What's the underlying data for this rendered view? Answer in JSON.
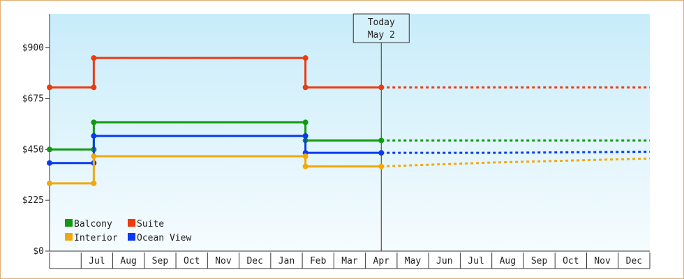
{
  "chart_data": {
    "type": "line",
    "title": "",
    "xlabel": "",
    "ylabel": "",
    "ylim": [
      0,
      1050
    ],
    "yticks": [
      {
        "value": 0,
        "label": "$0"
      },
      {
        "value": 225,
        "label": "$225"
      },
      {
        "value": 450,
        "label": "$450"
      },
      {
        "value": 675,
        "label": "$675"
      },
      {
        "value": 900,
        "label": "$900"
      }
    ],
    "x_months": [
      "",
      "Jul",
      "Aug",
      "Sep",
      "Oct",
      "Nov",
      "Dec",
      "Jan",
      "Feb",
      "Mar",
      "Apr",
      "May",
      "Jun",
      "Jul",
      "Aug",
      "Sep",
      "Oct",
      "Nov",
      "Dec"
    ],
    "x_range": [
      0,
      19
    ],
    "today": {
      "x": 10.5,
      "line1": "Today",
      "line2": "May 2"
    },
    "legend_position": "bottom-left",
    "series": [
      {
        "name": "Suite",
        "color": "#ee3a0e",
        "points": [
          [
            0,
            725
          ],
          [
            1.4,
            725
          ],
          [
            1.4,
            855
          ],
          [
            8.1,
            855
          ],
          [
            8.1,
            725
          ],
          [
            10.5,
            725
          ]
        ],
        "forecast": [
          [
            10.5,
            725
          ],
          [
            19,
            725
          ]
        ]
      },
      {
        "name": "Balcony",
        "color": "#119911",
        "points": [
          [
            0,
            450
          ],
          [
            1.4,
            450
          ],
          [
            1.4,
            570
          ],
          [
            8.1,
            570
          ],
          [
            8.1,
            490
          ],
          [
            10.5,
            490
          ]
        ],
        "forecast": [
          [
            10.5,
            490
          ],
          [
            19,
            490
          ]
        ]
      },
      {
        "name": "Ocean View",
        "color": "#0a3aee",
        "points": [
          [
            0,
            390
          ],
          [
            1.4,
            390
          ],
          [
            1.4,
            510
          ],
          [
            8.1,
            510
          ],
          [
            8.1,
            435
          ],
          [
            10.5,
            435
          ]
        ],
        "forecast": [
          [
            10.5,
            435
          ],
          [
            14,
            435
          ],
          [
            19,
            440
          ]
        ]
      },
      {
        "name": "Interior",
        "color": "#f2a80c",
        "points": [
          [
            0,
            300
          ],
          [
            1.4,
            300
          ],
          [
            1.4,
            420
          ],
          [
            8.1,
            420
          ],
          [
            8.1,
            375
          ],
          [
            10.5,
            375
          ]
        ],
        "forecast": [
          [
            10.5,
            375
          ],
          [
            14,
            392
          ],
          [
            19,
            410
          ]
        ]
      }
    ],
    "legend": [
      {
        "name": "Balcony",
        "color": "#119911"
      },
      {
        "name": "Suite",
        "color": "#ee3a0e"
      },
      {
        "name": "Interior",
        "color": "#f2a80c"
      },
      {
        "name": "Ocean View",
        "color": "#0a3aee"
      }
    ]
  }
}
